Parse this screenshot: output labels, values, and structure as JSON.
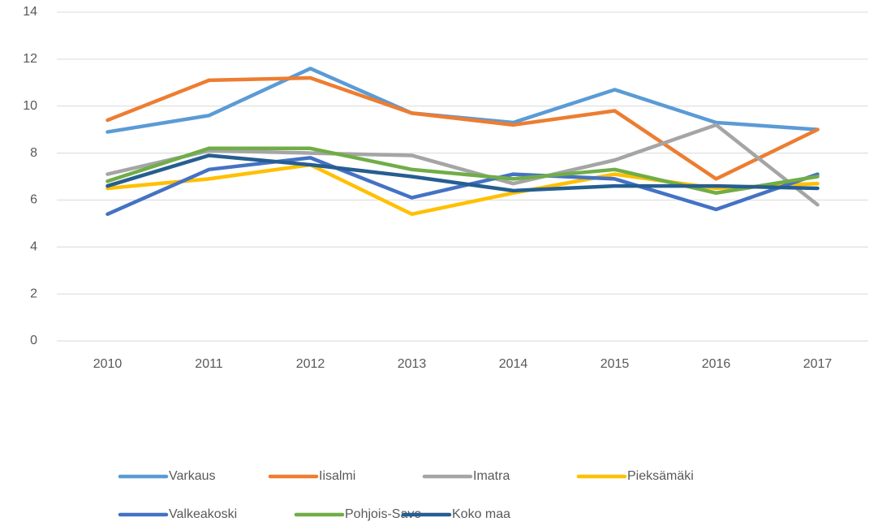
{
  "chart_data": {
    "type": "line",
    "categories": [
      "2010",
      "2011",
      "2012",
      "2013",
      "2014",
      "2015",
      "2016",
      "2017"
    ],
    "series": [
      {
        "name": "Varkaus",
        "color": "#5b9bd5",
        "values": [
          8.9,
          9.6,
          11.6,
          9.7,
          9.3,
          10.7,
          9.3,
          9.0
        ]
      },
      {
        "name": "Iisalmi",
        "color": "#ed7d31",
        "values": [
          9.4,
          11.1,
          11.2,
          9.7,
          9.2,
          9.8,
          6.9,
          9.0
        ]
      },
      {
        "name": "Imatra",
        "color": "#a5a5a5",
        "values": [
          7.1,
          8.1,
          8.0,
          7.9,
          6.7,
          7.7,
          9.2,
          5.8
        ]
      },
      {
        "name": "Pieksämäki",
        "color": "#ffc000",
        "values": [
          6.5,
          6.9,
          7.5,
          5.4,
          6.3,
          7.1,
          6.5,
          6.7
        ]
      },
      {
        "name": "Valkeakoski",
        "color": "#4472c4",
        "values": [
          5.4,
          7.3,
          7.8,
          6.1,
          7.1,
          6.9,
          5.6,
          7.1
        ]
      },
      {
        "name": "Pohjois-Savo",
        "color": "#70ad47",
        "values": [
          6.8,
          8.2,
          8.2,
          7.3,
          6.9,
          7.3,
          6.3,
          7.0
        ]
      },
      {
        "name": "Koko maa",
        "color": "#255e91",
        "values": [
          6.6,
          7.9,
          7.5,
          7.0,
          6.4,
          6.6,
          6.6,
          6.5
        ]
      }
    ],
    "ylim": [
      0,
      14
    ],
    "yticks": [
      0,
      2,
      4,
      6,
      8,
      10,
      12,
      14
    ],
    "grid": true,
    "legend": "bottom"
  }
}
